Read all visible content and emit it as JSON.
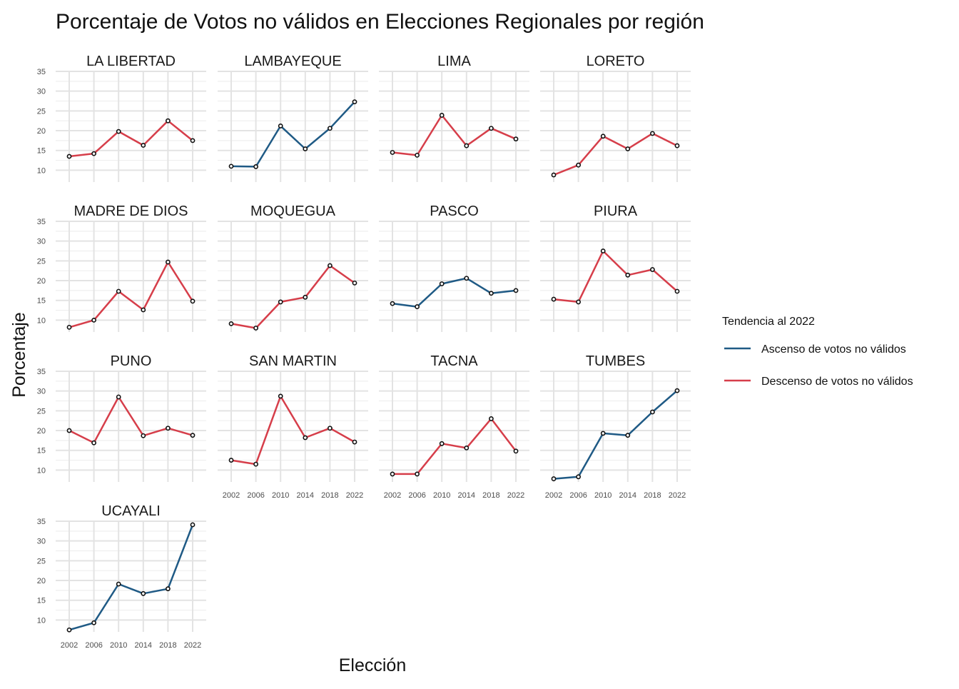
{
  "chart_data": {
    "type": "line",
    "title": "Porcentaje de Votos no válidos en Elecciones Regionales por región",
    "xlabel": "Elección",
    "ylabel": "Porcentaje",
    "x": [
      2002,
      2006,
      2010,
      2014,
      2018,
      2022
    ],
    "x_tick_labels": [
      "2002",
      "2006",
      "2010",
      "2014",
      "2018",
      "2022"
    ],
    "y_ticks": [
      10,
      15,
      20,
      25,
      30,
      35
    ],
    "y_tick_labels": [
      "10",
      "15",
      "20",
      "25",
      "30",
      "35"
    ],
    "ylim": [
      7,
      35
    ],
    "grid": true,
    "legend": {
      "title": "Tendencia al 2022",
      "placement": "right",
      "entries": [
        {
          "key": "ascenso",
          "label": "Ascenso de votos no válidos",
          "color": "#1f5a85"
        },
        {
          "key": "descenso",
          "label": "Descenso de votos no válidos",
          "color": "#d63e4a"
        }
      ]
    },
    "panels": [
      {
        "name": "LA LIBERTAD",
        "trend": "descenso",
        "values": [
          13.5,
          14.2,
          19.8,
          16.3,
          22.5,
          17.5
        ]
      },
      {
        "name": "LAMBAYEQUE",
        "trend": "ascenso",
        "values": [
          11.0,
          10.9,
          21.2,
          15.4,
          20.6,
          27.3
        ]
      },
      {
        "name": "LIMA",
        "trend": "descenso",
        "values": [
          14.5,
          13.8,
          23.9,
          16.2,
          20.6,
          17.9
        ]
      },
      {
        "name": "LORETO",
        "trend": "descenso",
        "values": [
          8.8,
          11.3,
          18.6,
          15.4,
          19.3,
          16.2
        ]
      },
      {
        "name": "MADRE DE DIOS",
        "trend": "descenso",
        "values": [
          8.2,
          10.0,
          17.3,
          12.6,
          24.7,
          14.8
        ]
      },
      {
        "name": "MOQUEGUA",
        "trend": "descenso",
        "values": [
          9.1,
          8.0,
          14.6,
          15.8,
          23.8,
          19.4
        ]
      },
      {
        "name": "PASCO",
        "trend": "ascenso",
        "values": [
          14.2,
          13.4,
          19.2,
          20.6,
          16.8,
          17.5
        ]
      },
      {
        "name": "PIURA",
        "trend": "descenso",
        "values": [
          15.3,
          14.6,
          27.5,
          21.4,
          22.8,
          17.3
        ]
      },
      {
        "name": "PUNO",
        "trend": "descenso",
        "values": [
          20.0,
          16.9,
          28.5,
          18.7,
          20.6,
          18.8
        ]
      },
      {
        "name": "SAN MARTIN",
        "trend": "descenso",
        "values": [
          12.5,
          11.5,
          28.7,
          18.2,
          20.6,
          17.1
        ]
      },
      {
        "name": "TACNA",
        "trend": "descenso",
        "values": [
          9.0,
          9.0,
          16.7,
          15.6,
          23.0,
          14.8
        ]
      },
      {
        "name": "TUMBES",
        "trend": "ascenso",
        "values": [
          7.8,
          8.3,
          19.3,
          18.8,
          24.7,
          30.1
        ]
      },
      {
        "name": "UCAYALI",
        "trend": "ascenso",
        "values": [
          7.5,
          9.3,
          19.1,
          16.7,
          17.9,
          34.1
        ]
      }
    ]
  }
}
